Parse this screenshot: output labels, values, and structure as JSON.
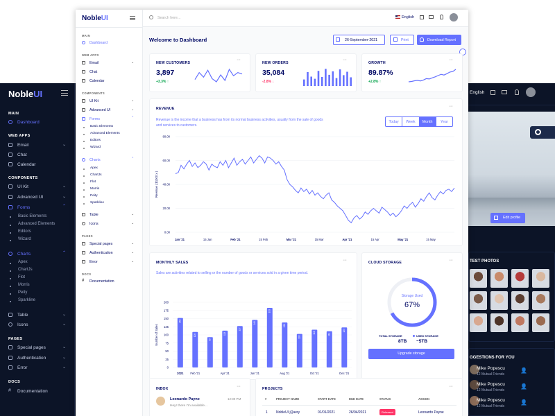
{
  "back_window": {
    "brand": {
      "a": "Noble",
      "b": "UI"
    },
    "sidebar": {
      "main_section": "MAIN",
      "dashboard": "Dashboard",
      "webapps_section": "WEB APPS",
      "email": "Email",
      "chat": "Chat",
      "calendar": "Calendar",
      "components_section": "COMPONENTS",
      "uikit": "UI Kit",
      "advanced_ui": "Advanced UI",
      "forms": "Forms",
      "forms_sub": [
        "Basic Elements",
        "Advanced Elements",
        "Editors",
        "Wizard"
      ],
      "charts": "Charts",
      "charts_sub": [
        "Apex",
        "ChartJs",
        "Flot",
        "Morris",
        "Peity",
        "Sparkline"
      ],
      "table": "Table",
      "icons": "Icons",
      "pages_section": "PAGES",
      "special_pages": "Special pages",
      "authentication": "Authentication",
      "error": "Error",
      "docs_section": "DOCS",
      "documentation": "Documentation"
    },
    "topbar": {
      "language": "English"
    },
    "profile": {
      "edit_button": "Edit profile"
    },
    "latest_photos": {
      "title": "TEST PHOTOS"
    },
    "suggestions": {
      "title": "GGESTIONS FOR YOU",
      "people": [
        {
          "name": "Mike Popescu",
          "mutual": "12 Mutual Friends"
        },
        {
          "name": "Mike Popescu",
          "mutual": "12 Mutual Friends"
        },
        {
          "name": "Mike Popescu",
          "mutual": "12 Mutual Friends"
        }
      ]
    }
  },
  "front_window": {
    "brand": {
      "a": "Noble",
      "b": "UI"
    },
    "search_placeholder": "Search here...",
    "language": "English",
    "sidebar": {
      "main_section": "MAIN",
      "dashboard": "Dashboard",
      "webapps_section": "WEB APPS",
      "email": "Email",
      "chat": "Chat",
      "calendar": "Calendar",
      "components_section": "COMPONENTS",
      "uikit": "UI Kit",
      "advanced_ui": "Advanced UI",
      "forms": "Forms",
      "forms_sub": [
        "Basic Elements",
        "Advanced Elements",
        "Editors",
        "Wizard"
      ],
      "charts": "Charts",
      "charts_sub": [
        "Apex",
        "ChartJs",
        "Flot",
        "Morris",
        "Peity",
        "Sparkline"
      ],
      "table": "Table",
      "icons": "Icons",
      "pages_section": "PAGES",
      "special_pages": "Special pages",
      "authentication": "Authentication",
      "error": "Error",
      "docs_section": "DOCS",
      "documentation": "Documentation"
    },
    "page_title": "Welcome to Dashboard",
    "date": "26-September-2021",
    "print_label": "Print",
    "download_label": "Download Report",
    "stats": [
      {
        "title": "NEW CUSTOMERS",
        "value": "3,897",
        "change": "+3.3%",
        "trend": "up"
      },
      {
        "title": "NEW ORDERS",
        "value": "35,084",
        "change": "-2.8%",
        "trend": "down"
      },
      {
        "title": "GROWTH",
        "value": "89.87%",
        "change": "+2.8%",
        "trend": "up"
      }
    ],
    "revenue": {
      "title": "REVENUE",
      "description": "Revenue is the income that a business has from its normal business activities, usually from the sale of goods and services to customers.",
      "tabs": [
        "Today",
        "Week",
        "Month",
        "Year"
      ],
      "active_tab": "Month"
    },
    "monthly_sales": {
      "title": "MONTHLY SALES",
      "description": "Sales are activities related to selling or the number of goods or services sold in a given time period."
    },
    "storage": {
      "title": "CLOUD STORAGE",
      "used_label": "Storage Used",
      "percent": "67%",
      "percent_value": 67,
      "total_label": "TOTAL STORAGE",
      "total_value": "8TB",
      "used_legend": "USED STORAGE",
      "used_value": "~5TB",
      "upgrade_label": "Upgrade storage"
    },
    "inbox": {
      "title": "INBOX",
      "messages": [
        {
          "name": "Leonardo Payne",
          "time": "12:30 PM",
          "text": "Hey! there I'm available..."
        }
      ]
    },
    "projects": {
      "title": "PROJECTS",
      "columns": [
        "#",
        "PROJECT NAME",
        "START DATE",
        "DUE DATE",
        "STATUS",
        "ASSIGN"
      ],
      "rows": [
        {
          "num": "1",
          "name": "NobleUI jQuery",
          "start": "01/01/2021",
          "due": "26/04/2021",
          "status": "Released",
          "assign": "Leonardo Payne"
        }
      ]
    },
    "colors": {
      "accent": "#6571ff",
      "green": "#05a34a",
      "red": "#ff3366",
      "dark": "#0c1427"
    }
  },
  "chart_data": [
    {
      "type": "line",
      "title": "REVENUE",
      "ylabel": "Revenue ( $1000 x )",
      "ylim": [
        0,
        80
      ],
      "y_ticks": [
        "0.00",
        "20.00",
        "40.00",
        "60.00",
        "80.00"
      ],
      "x_ticks": [
        "Jan '21",
        "15 Jan",
        "Feb '21",
        "15 Feb",
        "Mar '21",
        "15 Mar",
        "Apr '21",
        "15 Apr",
        "May '21",
        "15 May"
      ],
      "x_ticks_bold": [
        "Jan '21",
        "Feb '21",
        "Mar '21",
        "Apr '21",
        "May '21"
      ],
      "values": [
        49,
        50,
        56,
        53,
        57,
        60,
        55,
        58,
        54,
        56,
        59,
        57,
        52,
        57,
        55,
        54,
        59,
        56,
        60,
        54,
        58,
        62,
        56,
        59,
        61,
        57,
        60,
        63,
        58,
        61,
        64,
        62,
        58,
        63,
        62,
        60,
        57,
        59,
        55,
        52,
        44,
        40,
        38,
        35,
        33,
        37,
        34,
        36,
        32,
        35,
        31,
        33,
        30,
        28,
        31,
        33,
        27,
        25,
        22,
        20,
        18,
        14,
        10,
        8,
        12,
        14,
        11,
        13,
        17,
        15,
        18,
        20,
        18,
        16,
        21,
        19,
        17,
        14,
        16,
        13,
        15,
        18,
        22,
        20,
        23,
        25,
        21,
        24,
        28,
        26,
        30,
        33,
        29,
        27,
        31,
        34,
        32,
        35,
        36,
        34,
        37
      ]
    },
    {
      "type": "bar",
      "title": "MONTHLY SALES",
      "ylabel": "Number of Sales",
      "ylim": [
        0,
        200
      ],
      "y_ticks": [
        "0",
        "25",
        "50",
        "75",
        "100",
        "125",
        "150",
        "175",
        "200"
      ],
      "categories": [
        "2021",
        "Feb '21",
        "Mar '21",
        "Apr '21",
        "May '21",
        "Jun '21",
        "Jul '21",
        "Aug '21",
        "Sep '21",
        "Oct '21",
        "Nov '21",
        "Dec '21"
      ],
      "x_labels_shown": [
        "2021",
        "Feb '21",
        "Apr '21",
        "Jun '21",
        "Aug '21",
        "Oct '21",
        "Dec '21"
      ],
      "values": [
        152,
        109,
        93,
        113,
        127,
        146,
        183,
        138,
        103,
        116,
        111,
        123
      ]
    },
    {
      "type": "line",
      "title": "NEW CUSTOMERS",
      "values": [
        40,
        55,
        45,
        60,
        42,
        35,
        50,
        38,
        62,
        48,
        55,
        52
      ]
    },
    {
      "type": "bar",
      "title": "NEW ORDERS",
      "values": [
        36,
        77,
        52,
        40,
        84,
        50,
        95,
        62,
        81,
        44,
        92,
        60,
        79,
        48
      ]
    },
    {
      "type": "line",
      "title": "GROWTH",
      "values": [
        20,
        22,
        26,
        28,
        25,
        30,
        38,
        36,
        42,
        48,
        55,
        62,
        58,
        66,
        75,
        78,
        90
      ]
    }
  ]
}
